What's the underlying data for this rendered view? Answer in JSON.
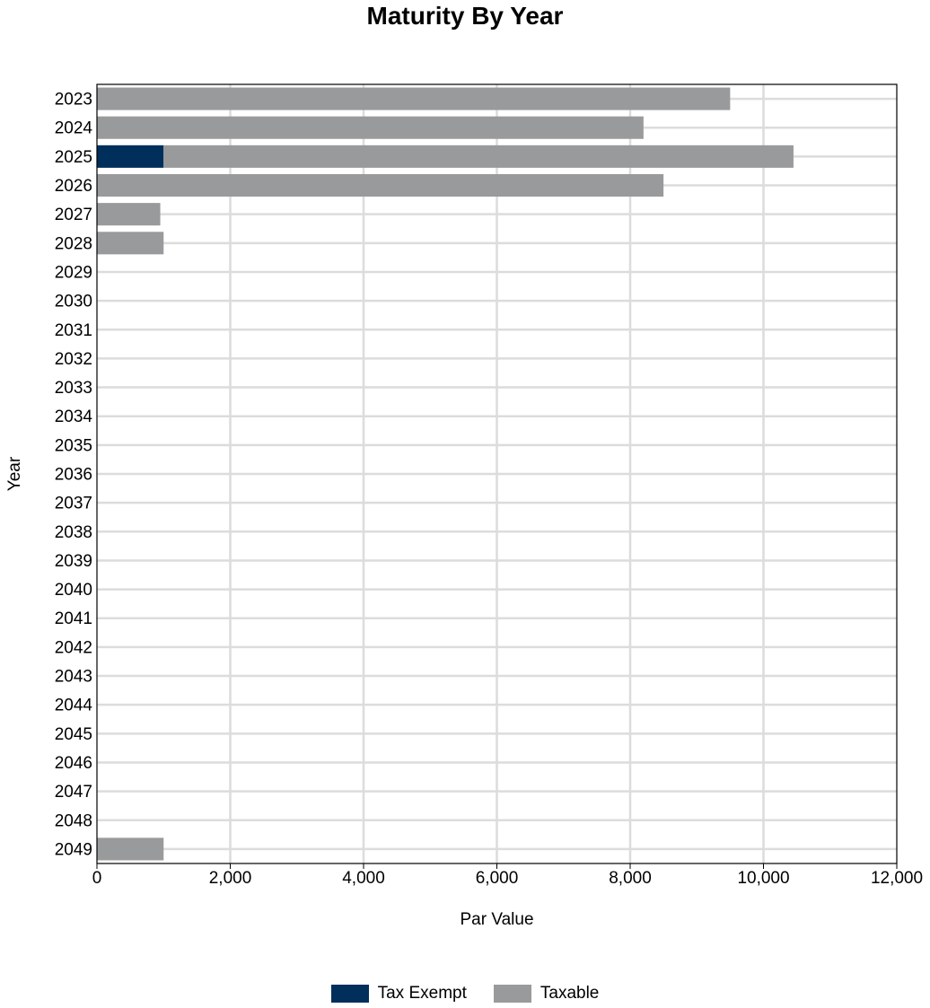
{
  "chart_data": {
    "type": "bar",
    "orientation": "horizontal",
    "stacked": true,
    "title": "Maturity By Year",
    "xlabel": "Par Value",
    "ylabel": "Year",
    "xlim": [
      0,
      12000
    ],
    "xticks": [
      "0",
      "2,000",
      "4,000",
      "6,000",
      "8,000",
      "10,000",
      "12,000"
    ],
    "grid": true,
    "legend_position": "bottom",
    "categories": [
      "2023",
      "2024",
      "2025",
      "2026",
      "2027",
      "2028",
      "2029",
      "2030",
      "2031",
      "2032",
      "2033",
      "2034",
      "2035",
      "2036",
      "2037",
      "2038",
      "2039",
      "2040",
      "2041",
      "2042",
      "2043",
      "2044",
      "2045",
      "2046",
      "2047",
      "2048",
      "2049"
    ],
    "series": [
      {
        "name": "Tax Exempt",
        "color": "#002f5c",
        "values": [
          0,
          0,
          1000,
          0,
          0,
          0,
          0,
          0,
          0,
          0,
          0,
          0,
          0,
          0,
          0,
          0,
          0,
          0,
          0,
          0,
          0,
          0,
          0,
          0,
          0,
          0,
          0
        ]
      },
      {
        "name": "Taxable",
        "color": "#999a9c",
        "values": [
          9500,
          8200,
          9450,
          8500,
          950,
          1000,
          0,
          0,
          0,
          0,
          0,
          0,
          0,
          0,
          0,
          0,
          0,
          0,
          0,
          0,
          0,
          0,
          0,
          0,
          0,
          0,
          1000
        ]
      }
    ]
  }
}
